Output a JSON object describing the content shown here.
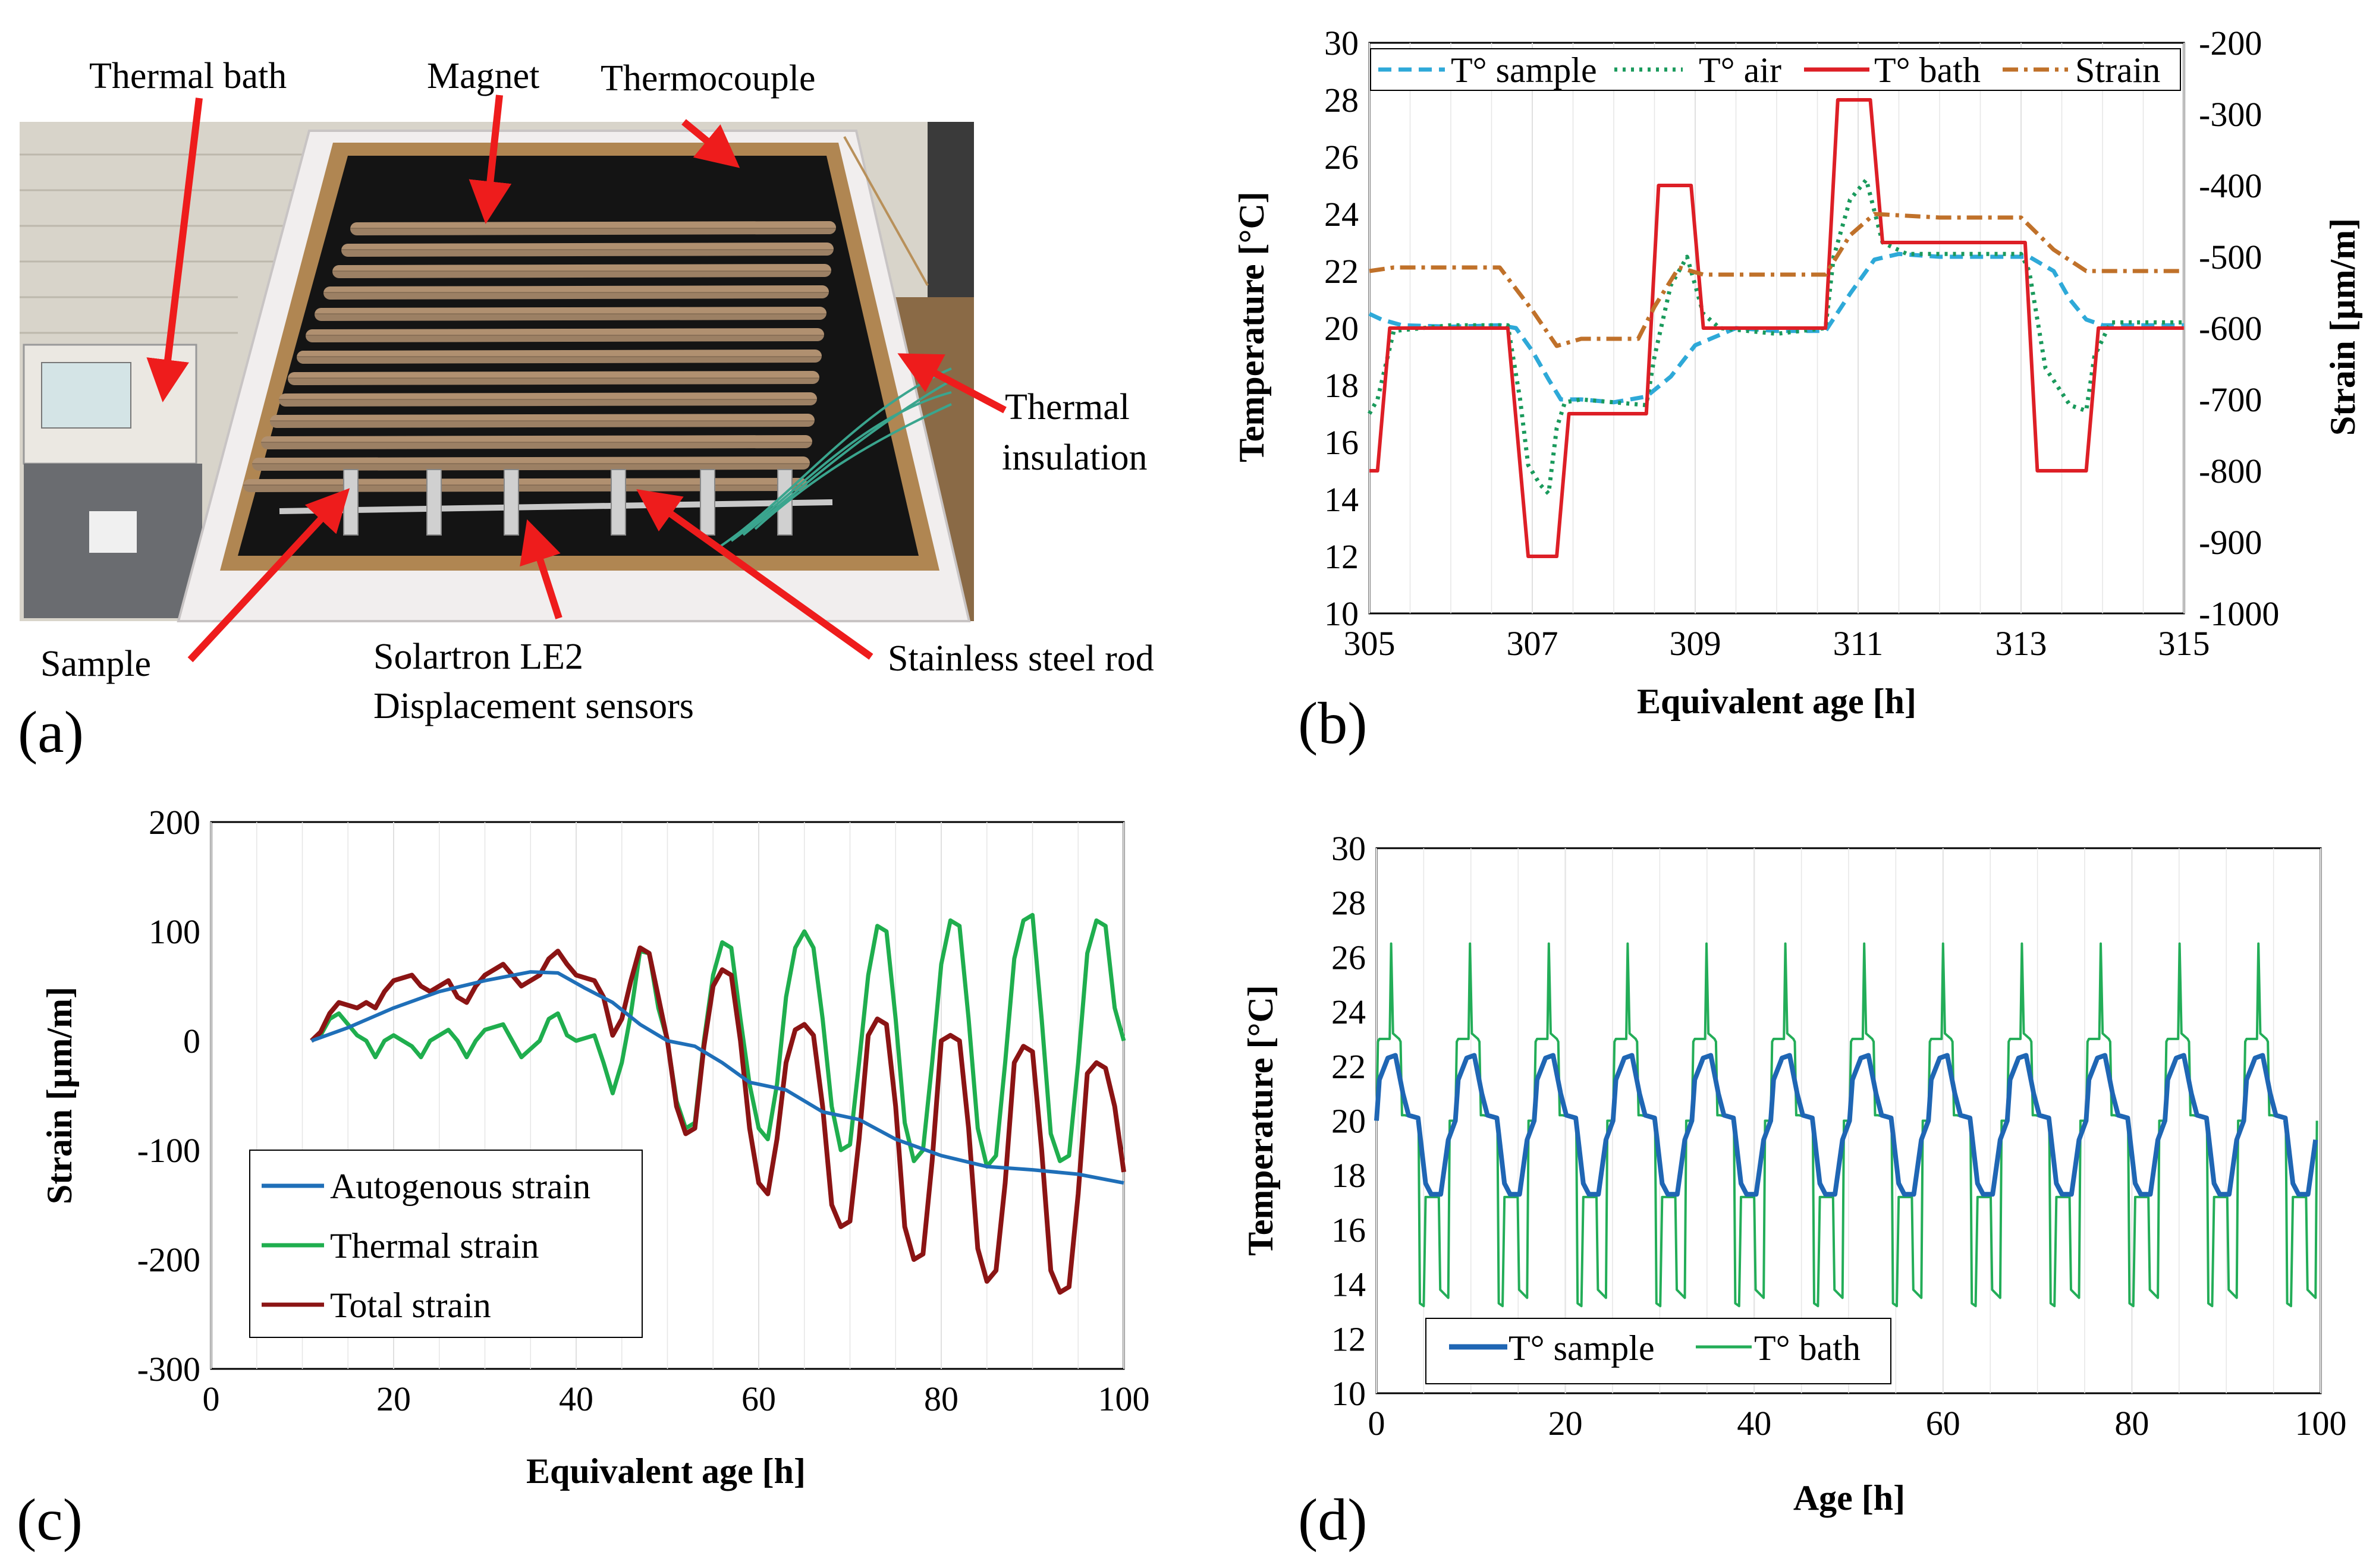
{
  "panels": {
    "a": "(a)",
    "b": "(b)",
    "c": "(c)",
    "d": "(d)"
  },
  "photo": {
    "labels": {
      "thermal_bath": "Thermal bath",
      "magnet": "Magnet",
      "thermocouple": "Thermocouple",
      "thermal_insulation_1": "Thermal",
      "thermal_insulation_2": "insulation",
      "sample": "Sample",
      "sensors_1": "Solartron LE2",
      "sensors_2": "Displacement sensors",
      "rod": "Stainless steel rod"
    },
    "colors": {
      "arrow": "#ee1c1c",
      "wall": "#d8d4ca",
      "frame": "#f1eeee",
      "wood": "#b08652",
      "interior": "#141414",
      "copper": "#8a7258"
    }
  },
  "colors": {
    "sample_b": "#2ea9d8",
    "air": "#1a9a5c",
    "bath_b": "#dd1f26",
    "strain_b": "#c0712a",
    "autogenous": "#1f6fb8",
    "thermal": "#1fae4e",
    "total": "#8b1414",
    "sample_d": "#1f66b4",
    "bath_d": "#23ad58",
    "grid": "#d0d0d0"
  },
  "chart_data": [
    {
      "id": "b",
      "type": "line",
      "xlabel": "Equivalent age [h]",
      "ylabel": "Temperature [°C]",
      "y2label": "Strain [µm/m]",
      "xlim": [
        305,
        315
      ],
      "ylim": [
        10,
        30
      ],
      "y2lim": [
        -1000,
        -200
      ],
      "xticks": [
        "305",
        "307",
        "309",
        "311",
        "313",
        "315"
      ],
      "yticks": [
        "10",
        "12",
        "14",
        "16",
        "18",
        "20",
        "22",
        "24",
        "26",
        "28",
        "30"
      ],
      "y2ticks": [
        "-1000",
        "-900",
        "-800",
        "-700",
        "-600",
        "-500",
        "-400",
        "-300",
        "-200"
      ],
      "series": [
        {
          "name": "T° sample",
          "axis": "left",
          "dash": "dash",
          "x": [
            305,
            305.15,
            305.4,
            306,
            306.6,
            306.8,
            307.0,
            307.2,
            307.35,
            307.6,
            308.0,
            308.4,
            308.7,
            309.0,
            309.5,
            310.0,
            310.6,
            310.9,
            311.2,
            311.5,
            312,
            312.5,
            313.1,
            313.4,
            313.6,
            313.8,
            314.0,
            314.5,
            315
          ],
          "values": [
            20.5,
            20.3,
            20.1,
            20.05,
            20.1,
            20.0,
            19.2,
            18.2,
            17.5,
            17.5,
            17.4,
            17.6,
            18.3,
            19.4,
            20.0,
            19.9,
            19.9,
            21.2,
            22.4,
            22.6,
            22.5,
            22.5,
            22.5,
            22.0,
            21.0,
            20.3,
            20.1,
            20.1,
            20.1
          ]
        },
        {
          "name": "T° air",
          "axis": "left",
          "dash": "dot",
          "x": [
            305,
            305.1,
            305.3,
            306,
            306.7,
            306.85,
            306.95,
            307.1,
            307.2,
            307.3,
            307.4,
            307.6,
            308,
            308.4,
            308.5,
            308.7,
            308.9,
            309.1,
            309.3,
            310,
            310.6,
            310.7,
            310.9,
            311.1,
            311.3,
            311.6,
            312,
            313.0,
            313.1,
            313.3,
            313.6,
            313.8,
            313.9,
            314.1,
            314.5,
            315
          ],
          "values": [
            17.0,
            17.5,
            19.9,
            20.1,
            20.1,
            17.5,
            15.2,
            14.5,
            14.2,
            16.5,
            17.4,
            17.5,
            17.4,
            17.3,
            19.0,
            21.5,
            22.5,
            20.5,
            20.0,
            19.8,
            20.0,
            22.5,
            24.5,
            25.2,
            23.0,
            22.6,
            22.6,
            22.6,
            22.0,
            18.6,
            17.3,
            17.1,
            19.0,
            20.2,
            20.2,
            20.2
          ]
        },
        {
          "name": "T° bath",
          "axis": "left",
          "dash": "solid",
          "x": [
            305,
            305.1,
            305.25,
            306.7,
            306.95,
            307.3,
            307.45,
            308.4,
            308.55,
            308.95,
            309.1,
            310.6,
            310.75,
            311.15,
            311.3,
            313.05,
            313.2,
            313.8,
            313.95,
            315
          ],
          "values": [
            15,
            15,
            20,
            20,
            12,
            12,
            17,
            17,
            25,
            25,
            20,
            20,
            28,
            28,
            23,
            23,
            15,
            15,
            20,
            20
          ]
        },
        {
          "name": "Strain",
          "axis": "right",
          "dash": "dashdot",
          "x": [
            305,
            305.3,
            306.6,
            307.0,
            307.3,
            307.6,
            308.3,
            308.5,
            308.8,
            309.1,
            310.6,
            310.9,
            311.2,
            312,
            313.0,
            313.4,
            313.8,
            315
          ],
          "values": [
            -520,
            -515,
            -515,
            -575,
            -625,
            -615,
            -615,
            -570,
            -515,
            -525,
            -525,
            -470,
            -440,
            -445,
            -445,
            -490,
            -520,
            -520
          ]
        }
      ]
    },
    {
      "id": "c",
      "type": "line",
      "xlabel": "Equivalent age [h]",
      "ylabel": "Strain [µm/m]",
      "xlim": [
        0,
        100
      ],
      "ylim": [
        -300,
        200
      ],
      "xticks": [
        "0",
        "20",
        "40",
        "60",
        "80",
        "100"
      ],
      "yticks": [
        "-300",
        "-200",
        "-100",
        "0",
        "100",
        "200"
      ],
      "series": [
        {
          "name": "Autogenous strain",
          "x": [
            11,
            15,
            20,
            25,
            30,
            35,
            38,
            41,
            44,
            47,
            50,
            53,
            56,
            59,
            63,
            67,
            71,
            75,
            80,
            85,
            90,
            95,
            100
          ],
          "values": [
            0,
            12,
            30,
            45,
            55,
            63,
            62,
            48,
            35,
            15,
            0,
            -5,
            -20,
            -38,
            -45,
            -65,
            -72,
            -90,
            -105,
            -115,
            -118,
            -122,
            -130
          ]
        },
        {
          "name": "Thermal strain",
          "x": [
            11,
            12,
            13,
            14,
            16,
            17,
            18,
            19,
            20,
            22,
            23,
            24,
            26,
            27,
            28,
            29,
            30,
            32,
            33,
            34,
            36,
            37,
            38,
            39,
            40,
            42,
            43,
            44,
            45,
            46,
            47,
            48,
            49,
            50,
            51,
            52,
            53,
            54,
            55,
            56,
            57,
            58,
            59,
            60,
            61,
            62,
            63,
            64,
            65,
            66,
            67,
            68,
            69,
            70,
            71,
            72,
            73,
            74,
            75,
            76,
            77,
            78,
            79,
            80,
            81,
            82,
            83,
            84,
            85,
            86,
            87,
            88,
            89,
            90,
            91,
            92,
            93,
            94,
            95,
            96,
            97,
            98,
            99,
            100
          ],
          "values": [
            0,
            5,
            20,
            25,
            5,
            0,
            -15,
            0,
            5,
            -5,
            -15,
            0,
            10,
            0,
            -15,
            0,
            10,
            15,
            0,
            -15,
            0,
            20,
            25,
            5,
            0,
            5,
            -20,
            -48,
            -20,
            25,
            82,
            80,
            30,
            0,
            -55,
            -80,
            -75,
            0,
            60,
            90,
            85,
            20,
            -40,
            -80,
            -90,
            -40,
            40,
            85,
            100,
            85,
            20,
            -60,
            -100,
            -95,
            -20,
            60,
            105,
            100,
            20,
            -75,
            -110,
            -100,
            -20,
            70,
            110,
            105,
            20,
            -80,
            -115,
            -105,
            -20,
            75,
            110,
            115,
            20,
            -85,
            -110,
            -105,
            -20,
            80,
            110,
            105,
            30,
            0
          ]
        },
        {
          "name": "Total strain",
          "x": [
            11,
            12,
            13,
            14,
            16,
            17,
            18,
            19,
            20,
            22,
            23,
            24,
            26,
            27,
            28,
            29,
            30,
            32,
            33,
            34,
            36,
            37,
            38,
            39,
            40,
            42,
            43,
            44,
            45,
            46,
            47,
            48,
            49,
            50,
            51,
            52,
            53,
            54,
            55,
            56,
            57,
            58,
            59,
            60,
            61,
            62,
            63,
            64,
            65,
            66,
            67,
            68,
            69,
            70,
            71,
            72,
            73,
            74,
            75,
            76,
            77,
            78,
            79,
            80,
            81,
            82,
            83,
            84,
            85,
            86,
            87,
            88,
            89,
            90,
            91,
            92,
            93,
            94,
            95,
            96,
            97,
            98,
            99,
            100
          ],
          "values": [
            0,
            8,
            25,
            35,
            30,
            35,
            30,
            45,
            55,
            60,
            50,
            45,
            55,
            40,
            35,
            50,
            60,
            70,
            60,
            50,
            60,
            75,
            82,
            70,
            60,
            55,
            40,
            5,
            20,
            55,
            85,
            80,
            40,
            0,
            -60,
            -85,
            -80,
            -5,
            50,
            65,
            60,
            0,
            -80,
            -130,
            -140,
            -90,
            -20,
            10,
            15,
            5,
            -60,
            -150,
            -170,
            -165,
            -90,
            5,
            20,
            15,
            -60,
            -170,
            -200,
            -195,
            -110,
            0,
            5,
            0,
            -80,
            -190,
            -220,
            -210,
            -130,
            -20,
            -5,
            -10,
            -100,
            -210,
            -230,
            -225,
            -140,
            -30,
            -20,
            -25,
            -60,
            -120
          ]
        }
      ]
    },
    {
      "id": "d",
      "type": "line",
      "xlabel": "Age [h]",
      "ylabel": "Temperature [°C]",
      "xlim": [
        0,
        100
      ],
      "ylim": [
        10,
        30
      ],
      "xticks": [
        "0",
        "20",
        "40",
        "60",
        "80",
        "100"
      ],
      "yticks": [
        "10",
        "12",
        "14",
        "16",
        "18",
        "20",
        "22",
        "24",
        "26",
        "28",
        "30"
      ],
      "series": [
        {
          "name": "T° sample",
          "period": 8.35,
          "start": 0,
          "pattern_t": [
            0,
            0.3,
            1.2,
            2.0,
            2.8,
            3.4,
            4.4,
            5.2,
            5.8,
            6.8,
            7.6,
            8.35
          ],
          "pattern_v": [
            20.0,
            21.5,
            22.3,
            22.4,
            21.0,
            20.2,
            20.1,
            17.7,
            17.3,
            17.3,
            19.3,
            20.0
          ]
        },
        {
          "name": "T° bath",
          "period": 8.35,
          "start": 0,
          "pattern_t": [
            0,
            0.15,
            0.3,
            1.4,
            1.55,
            1.75,
            2.4,
            2.55,
            2.7,
            3.0,
            4.3,
            4.45,
            4.6,
            5.0,
            5.2,
            6.0,
            6.6,
            6.75,
            7.6,
            7.75,
            8.35
          ],
          "pattern_v": [
            20.0,
            22.9,
            23.0,
            23.0,
            26.5,
            23.2,
            23.0,
            22.9,
            20.2,
            20.2,
            20.1,
            20.1,
            13.3,
            13.2,
            17.2,
            17.2,
            17.2,
            13.8,
            13.5,
            20.0,
            20.0
          ]
        }
      ]
    }
  ]
}
